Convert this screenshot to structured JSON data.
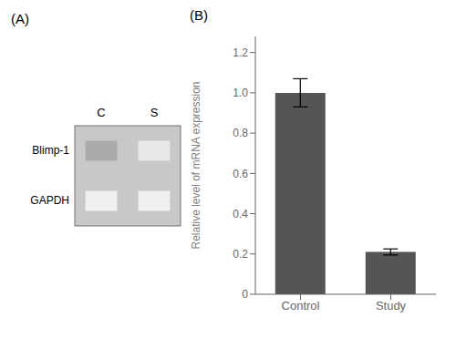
{
  "chart_data": [
    {
      "type": "gel",
      "title": "(A)",
      "categories": [
        "C",
        "S"
      ],
      "series": [
        {
          "name": "Blimp-1",
          "colors": [
            "#aaaaaa",
            "#e8e8e8"
          ]
        },
        {
          "name": "GAPDH",
          "colors": [
            "#f0f0f0",
            "#f0f0f0"
          ]
        }
      ],
      "color": "#c8c8c8"
    },
    {
      "type": "bar",
      "title": "(B)",
      "categories": [
        "Control",
        "Study"
      ],
      "values": [
        1.0,
        0.21
      ],
      "errors": [
        0.07,
        0.015
      ],
      "color": "#555555",
      "ylabel": "Relative level of mRNA expression",
      "ylim": [
        0,
        1.28
      ],
      "yticks": [
        0,
        0.2,
        0.4,
        0.6,
        0.8,
        {
          "value": 1.0,
          "label": "1.0"
        },
        1.2
      ],
      "grid": false
    }
  ]
}
